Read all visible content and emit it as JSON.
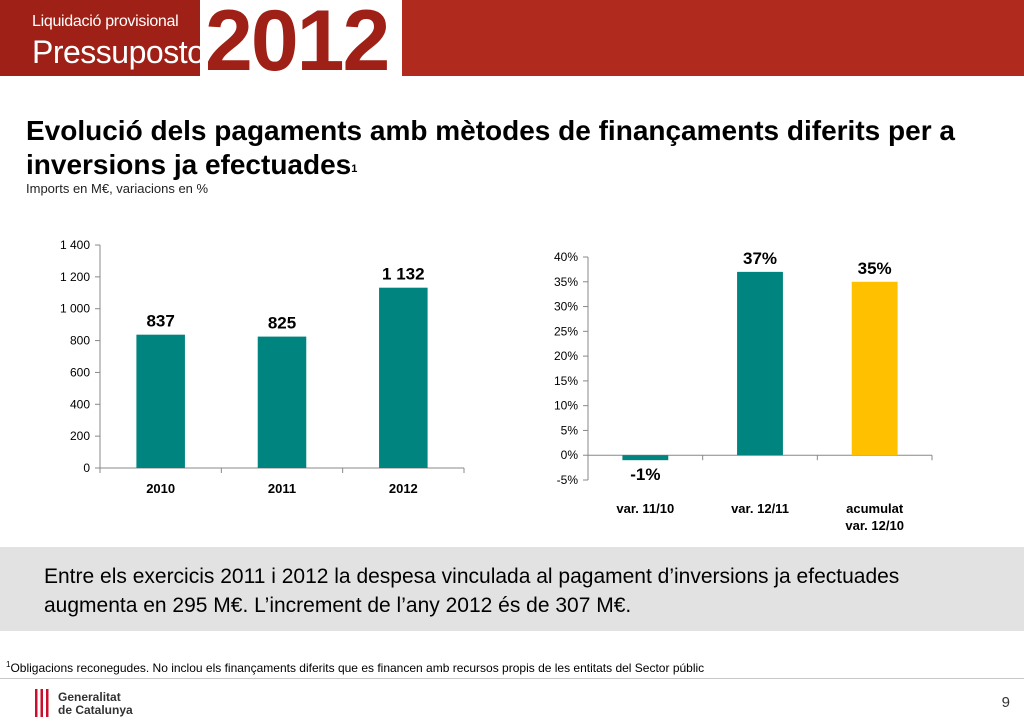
{
  "header": {
    "subtitle": "Liquidació provisional",
    "title": "Pressupostos",
    "year": "2012"
  },
  "slide": {
    "title": "Evolució dels pagaments amb mètodes de finançaments diferits per a inversions ja efectuades",
    "title_sup": "1",
    "subtitle": "Imports en M€, variacions en %"
  },
  "chart_data": [
    {
      "type": "bar",
      "categories": [
        "2010",
        "2011",
        "2012"
      ],
      "values": [
        837,
        825,
        1132
      ],
      "data_labels": [
        "837",
        "825",
        "1 132"
      ],
      "ylim": [
        0,
        1400
      ],
      "yticks": [
        0,
        200,
        400,
        600,
        800,
        1000,
        1200,
        1400
      ],
      "ytick_labels": [
        "0",
        "200",
        "400",
        "600",
        "800",
        "1 000",
        "1 200",
        "1 400"
      ],
      "colors": [
        "#00847f",
        "#00847f",
        "#00847f"
      ],
      "grid": false
    },
    {
      "type": "bar",
      "categories": [
        "var. 11/10",
        "var. 12/11",
        "acumulat var. 12/10"
      ],
      "category_lines": [
        [
          "var. 11/10"
        ],
        [
          "var. 12/11"
        ],
        [
          "acumulat",
          "var. 12/10"
        ]
      ],
      "values": [
        -1,
        37,
        35
      ],
      "data_labels": [
        "-1%",
        "37%",
        "35%"
      ],
      "ylim": [
        -5,
        40
      ],
      "yticks": [
        -5,
        0,
        5,
        10,
        15,
        20,
        25,
        30,
        35,
        40
      ],
      "ytick_labels": [
        "-5%",
        "0%",
        "5%",
        "10%",
        "15%",
        "20%",
        "25%",
        "30%",
        "35%",
        "40%"
      ],
      "colors": [
        "#00847f",
        "#00847f",
        "#ffc000"
      ],
      "grid": false
    }
  ],
  "note": {
    "text": "Entre els exercicis 2011 i 2012 la despesa vinculada al pagament d’inversions ja efectuades augmenta en 295 M€. L’increment de l’any 2012 és de 307 M€."
  },
  "footnote": {
    "sup": "1",
    "text": "Obligacions reconegudes. No inclou els finançaments diferits que es financen amb recursos propis de les entitats del Sector públic"
  },
  "footer": {
    "logo_line1": "Generalitat",
    "logo_line2": "de Catalunya",
    "page_number": "9"
  }
}
